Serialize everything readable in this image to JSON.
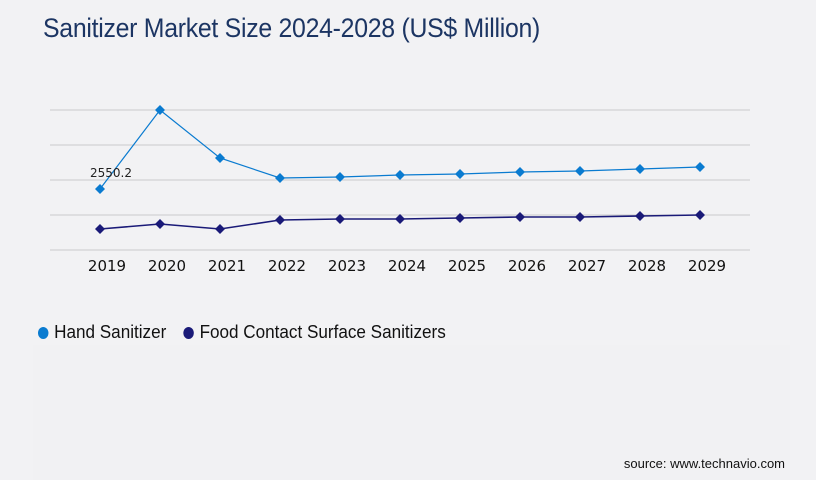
{
  "title": "Sanitizer Market Size 2024-2028 (US$ Million)",
  "source": "source: www.technavio.com",
  "colors": {
    "hand": "#0a7bd0",
    "food": "#1a1a78",
    "grid": "#c9c9cb",
    "title": "#1c3563"
  },
  "legend": [
    {
      "label": "Hand Sanitizer",
      "color": "#0a7bd0"
    },
    {
      "label": "Food Contact Surface Sanitizers",
      "color": "#1a1a78"
    }
  ],
  "chart_data": {
    "type": "line",
    "title": "Sanitizer Market Size 2024-2028 (US$ Million)",
    "xlabel": "",
    "ylabel": "",
    "categories": [
      "2019",
      "2020",
      "2021",
      "2022",
      "2023",
      "2024",
      "2025",
      "2026",
      "2027",
      "2028",
      "2029"
    ],
    "ylim": [
      0,
      7315
    ],
    "gridlines": 5,
    "grid": true,
    "legend_position": "bottom-left",
    "series": [
      {
        "name": "Hand Sanitizer",
        "color": "#0a7bd0",
        "values": [
          2550.2,
          5853,
          3846,
          3010,
          3052,
          3136,
          3178,
          3261,
          3303,
          3387,
          3470
        ]
      },
      {
        "name": "Food Contact Surface Sanitizers",
        "color": "#1a1a78",
        "values": [
          878,
          1087,
          878,
          1254,
          1296,
          1296,
          1338,
          1380,
          1380,
          1421,
          1463
        ]
      }
    ],
    "annotations": [
      {
        "series": 0,
        "index": 0,
        "text": "2550.2"
      }
    ]
  }
}
